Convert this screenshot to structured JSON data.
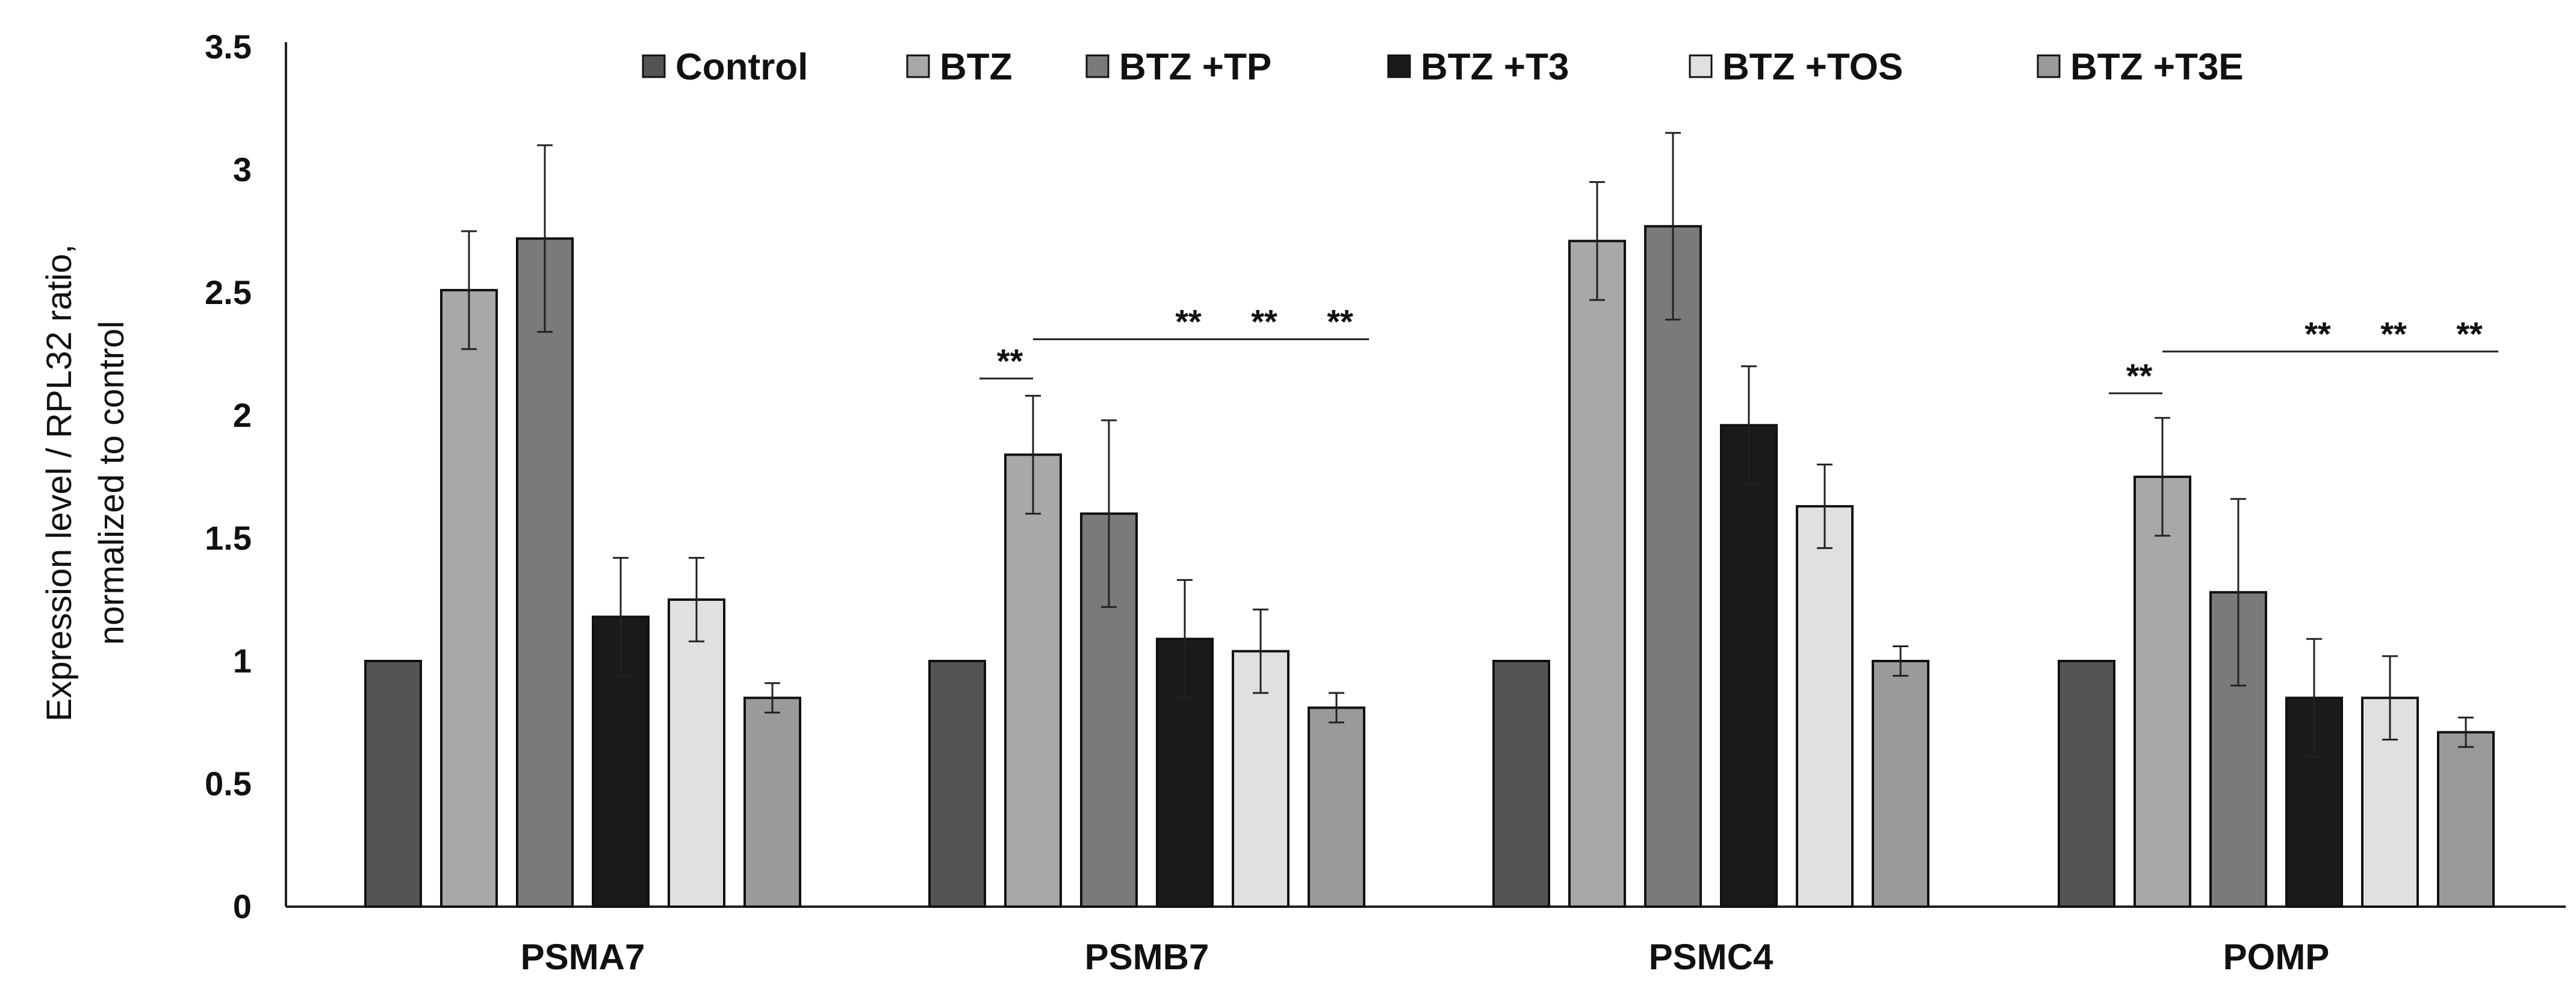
{
  "chart_data": {
    "type": "bar",
    "title": "",
    "xlabel": "",
    "ylabel_lines": [
      "Expression level / RPL32 ratio,",
      "normalized to control"
    ],
    "ylim": [
      0,
      3.5
    ],
    "yticks": [
      0,
      0.5,
      1,
      1.5,
      2,
      2.5,
      3,
      3.5
    ],
    "ytick_labels": [
      "0",
      "0.5",
      "1",
      "1.5",
      "2",
      "2.5",
      "3",
      "3.5"
    ],
    "legend_position": "top",
    "categories": [
      "PSMA7",
      "PSMB7",
      "PSMC4",
      "POMP"
    ],
    "series": [
      {
        "name": "Control",
        "color": "#545454",
        "values": [
          1.0,
          1.0,
          1.0,
          1.0
        ],
        "errors": [
          0.0,
          0.0,
          0.0,
          0.0
        ]
      },
      {
        "name": "BTZ",
        "color": "#a8a8a8",
        "values": [
          2.51,
          1.84,
          2.71,
          1.75
        ],
        "errors": [
          0.24,
          0.24,
          0.24,
          0.24
        ]
      },
      {
        "name": "BTZ +TP",
        "color": "#7a7a7a",
        "values": [
          2.72,
          1.6,
          2.77,
          1.28
        ],
        "errors": [
          0.38,
          0.38,
          0.38,
          0.38
        ]
      },
      {
        "name": "BTZ +T3",
        "color": "#1a1a1a",
        "values": [
          1.18,
          1.09,
          1.96,
          0.85
        ],
        "errors": [
          0.24,
          0.24,
          0.24,
          0.24
        ]
      },
      {
        "name": "BTZ +TOS",
        "color": "#e0e0e0",
        "values": [
          1.25,
          1.04,
          1.63,
          0.85
        ],
        "errors": [
          0.17,
          0.17,
          0.17,
          0.17
        ]
      },
      {
        "name": "BTZ +T3E",
        "color": "#9a9a9a",
        "values": [
          0.85,
          0.81,
          1.0,
          0.71
        ],
        "errors": [
          0.06,
          0.06,
          0.06,
          0.06
        ]
      }
    ],
    "significance": [
      {
        "category": "PSMB7",
        "short_label": "**",
        "short_y": 2.15,
        "long_labels": [
          "**",
          "**",
          "**"
        ],
        "long_y": 2.31
      },
      {
        "category": "POMP",
        "short_label": "**",
        "short_y": 2.09,
        "long_labels": [
          "**",
          "**",
          "**"
        ],
        "long_y": 2.26
      }
    ]
  }
}
